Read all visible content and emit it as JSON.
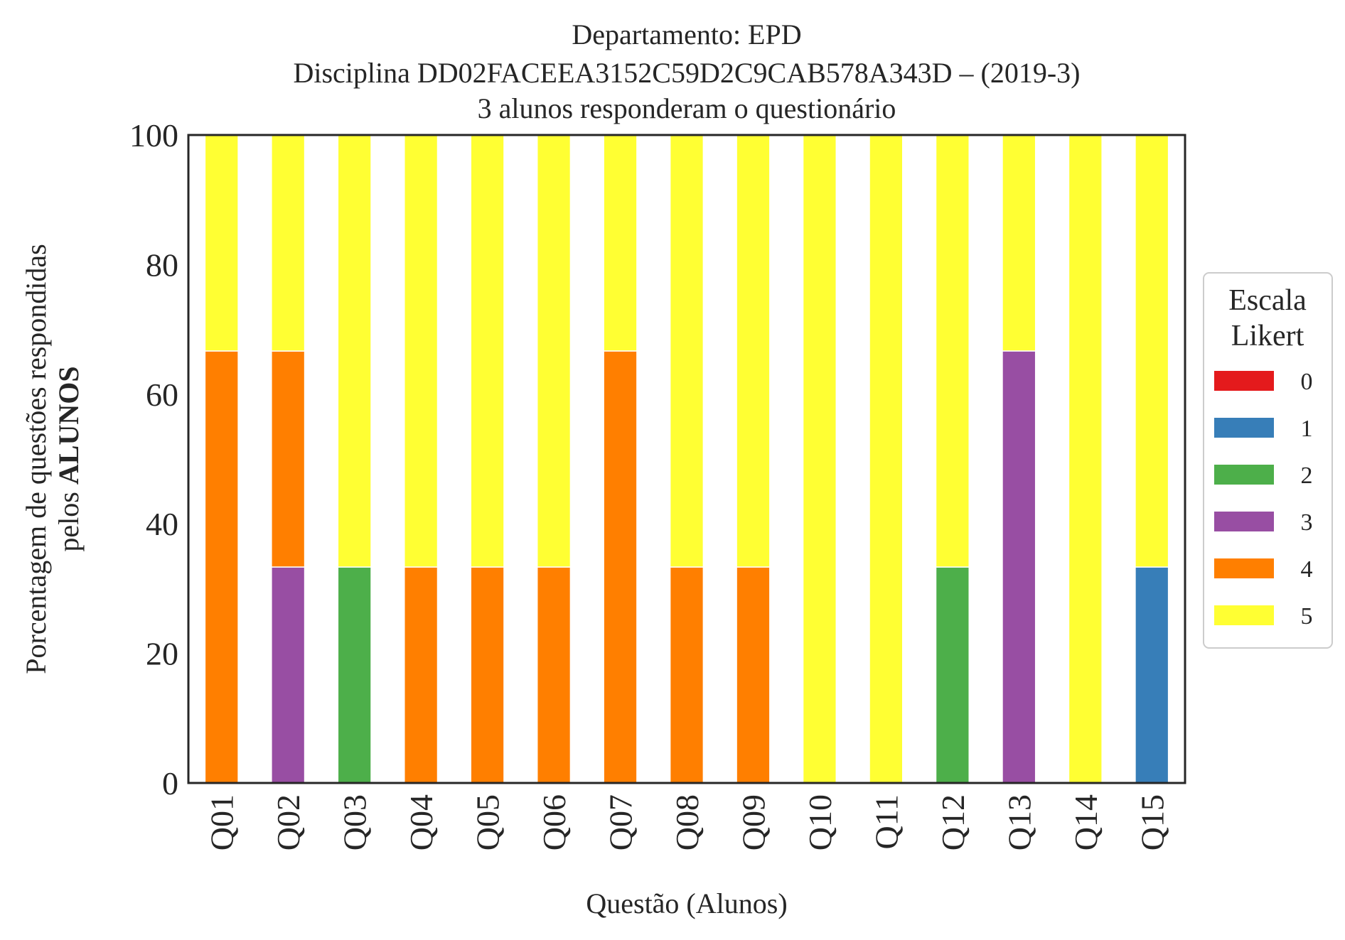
{
  "chart_data": {
    "type": "bar",
    "stacked": true,
    "title": [
      "Departamento: EPD",
      "Disciplina DD02FACEEA3152C59D2C9CAB578A343D – (2019-3)",
      "3 alunos responderam o questionário"
    ],
    "xlabel": "Questão (Alunos)",
    "ylabel_line1": "Porcentagem de questões respondidas",
    "ylabel_line2_prefix": "pelos ",
    "ylabel_line2_bold": "ALUNOS",
    "ylim": [
      0,
      100
    ],
    "yticks": [
      "0",
      "20",
      "40",
      "60",
      "80",
      "100"
    ],
    "categories": [
      "Q01",
      "Q02",
      "Q03",
      "Q04",
      "Q05",
      "Q06",
      "Q07",
      "Q08",
      "Q09",
      "Q10",
      "Q11",
      "Q12",
      "Q13",
      "Q14",
      "Q15"
    ],
    "series": [
      {
        "name": "0",
        "color": "#e41a1c",
        "values": [
          0,
          0,
          0,
          0,
          0,
          0,
          0,
          0,
          0,
          0,
          0,
          0,
          0,
          0,
          0
        ]
      },
      {
        "name": "1",
        "color": "#377eb8",
        "values": [
          0,
          0,
          0,
          0,
          0,
          0,
          0,
          0,
          0,
          0,
          0,
          0,
          0,
          0,
          33.33
        ]
      },
      {
        "name": "2",
        "color": "#4daf4a",
        "values": [
          0,
          0,
          33.33,
          0,
          0,
          0,
          0,
          0,
          0,
          0,
          0,
          33.33,
          0,
          0,
          0
        ]
      },
      {
        "name": "3",
        "color": "#984ea3",
        "values": [
          0,
          33.33,
          0,
          0,
          0,
          0,
          0,
          0,
          0,
          0,
          0,
          0,
          66.67,
          0,
          0
        ]
      },
      {
        "name": "4",
        "color": "#ff7f00",
        "values": [
          66.67,
          33.33,
          0,
          33.33,
          33.33,
          33.33,
          66.67,
          33.33,
          33.33,
          0,
          0,
          0,
          0,
          0,
          0
        ]
      },
      {
        "name": "5",
        "color": "#ffff33",
        "values": [
          33.33,
          33.33,
          66.67,
          66.67,
          66.67,
          66.67,
          33.33,
          66.67,
          66.67,
          100,
          100,
          66.67,
          33.33,
          100,
          66.67
        ]
      }
    ],
    "legend": {
      "title": [
        "Escala",
        "Likert"
      ],
      "position": "right"
    }
  }
}
